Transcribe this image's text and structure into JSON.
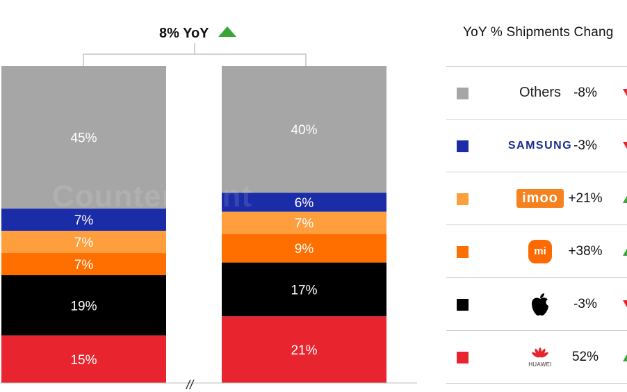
{
  "chart_data": {
    "type": "stacked-bar",
    "annotation": "8% YoY",
    "break_mark": "//",
    "series": [
      {
        "name": "Others",
        "color": "#a6a6a6",
        "values": [
          45,
          40
        ],
        "labels": [
          "45%",
          "40%"
        ]
      },
      {
        "name": "Samsung",
        "color": "#1b2ca8",
        "values": [
          7,
          6
        ],
        "labels": [
          "7%",
          "6%"
        ]
      },
      {
        "name": "imoo",
        "color": "#ff9e3d",
        "values": [
          7,
          7
        ],
        "labels": [
          "7%",
          "7%"
        ]
      },
      {
        "name": "Xiaomi",
        "color": "#ff6f00",
        "values": [
          7,
          9
        ],
        "labels": [
          "7%",
          "9%"
        ]
      },
      {
        "name": "Apple",
        "color": "#000000",
        "values": [
          19,
          17
        ],
        "labels": [
          "19%",
          "17%"
        ]
      },
      {
        "name": "Huawei",
        "color": "#e8252f",
        "values": [
          15,
          21
        ],
        "labels": [
          "15%",
          "21%"
        ]
      }
    ]
  },
  "legend": {
    "header": "YoY % Shipments Chang",
    "rows": [
      {
        "brand": "Others",
        "change": "-8%",
        "color": "#a6a6a6",
        "icon": "square-swatch"
      },
      {
        "brand": "SAMSUNG",
        "change": "-3%",
        "color": "#1b2ca8",
        "icon": "samsung-logo"
      },
      {
        "brand": "imoo",
        "change": "+21%",
        "color": "#ff9e3d",
        "icon": "imoo-logo"
      },
      {
        "brand": "mi",
        "change": "+38%",
        "color": "#ff6f00",
        "icon": "xiaomi-logo"
      },
      {
        "brand": "",
        "change": "-3%",
        "color": "#000000",
        "icon": "apple-logo"
      },
      {
        "brand": "HUAWEI",
        "change": "52%",
        "color": "#e8252f",
        "icon": "huawei-logo"
      }
    ]
  },
  "watermark": "Counterpoint",
  "colors": {
    "up_arrow": "#3aa535",
    "down_arrow": "#e8252f"
  }
}
